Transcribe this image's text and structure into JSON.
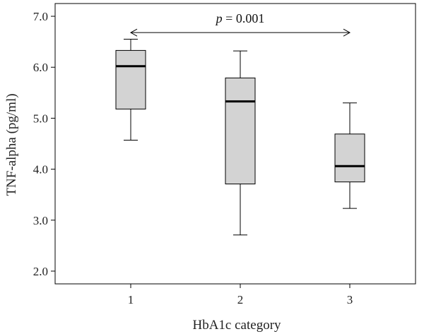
{
  "chart_data": {
    "type": "box",
    "title": "",
    "xlabel": "HbA1c category",
    "ylabel": "TNF-alpha (pg/ml)",
    "ylim": [
      1.75,
      7.25
    ],
    "yticks": [
      "2.0",
      "3.0",
      "4.0",
      "5.0",
      "6.0",
      "7.0"
    ],
    "categories": [
      "1",
      "2",
      "3"
    ],
    "boxes": [
      {
        "category": "1",
        "min": 4.57,
        "q1": 5.18,
        "median": 6.02,
        "q3": 6.33,
        "max": 6.55
      },
      {
        "category": "2",
        "min": 2.71,
        "q1": 3.71,
        "median": 5.33,
        "q3": 5.79,
        "max": 6.32
      },
      {
        "category": "3",
        "min": 3.23,
        "q1": 3.75,
        "median": 4.06,
        "q3": 4.69,
        "max": 5.3
      }
    ],
    "annotation": {
      "p_label": "p",
      "p_value": " = 0.001",
      "from_category": "1",
      "to_category": "3",
      "level": 6.68
    },
    "box_fill": "#d3d3d3",
    "grid": false
  }
}
